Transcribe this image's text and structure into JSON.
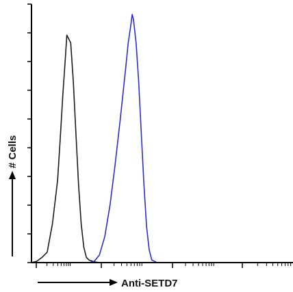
{
  "chart_data": {
    "type": "line",
    "title": "",
    "xlabel": "Anti-SETD7",
    "ylabel": "# Cells",
    "xlim": [
      0,
      100
    ],
    "ylim": [
      0,
      100
    ],
    "grid": false,
    "legend": "none",
    "colors": {
      "control": "#1a1a1a",
      "sample": "#2b2bd6",
      "axis": "#000000"
    },
    "series": [
      {
        "color": "#1a1a1a",
        "x": [
          0,
          2,
          4,
          6,
          8,
          10,
          11,
          12,
          13,
          13.5,
          14,
          15,
          16,
          17,
          18,
          19,
          20,
          21,
          22,
          24,
          26
        ],
        "y": [
          0,
          0.5,
          2,
          4,
          15,
          32,
          48,
          65,
          80,
          88,
          87,
          85,
          70,
          50,
          30,
          15,
          6,
          2,
          1,
          0.3,
          0
        ]
      },
      {
        "color": "#2b2bd6",
        "x": [
          22,
          24,
          26,
          28,
          30,
          32,
          34,
          36,
          37,
          38,
          38.5,
          39,
          40,
          41,
          42,
          43,
          44,
          45,
          46,
          48
        ],
        "y": [
          0,
          0.5,
          3,
          10,
          22,
          38,
          56,
          75,
          85,
          92,
          96,
          94,
          85,
          70,
          50,
          30,
          14,
          5,
          1,
          0
        ]
      }
    ],
    "axis_arrows": {
      "x": "right",
      "y": "up"
    }
  }
}
